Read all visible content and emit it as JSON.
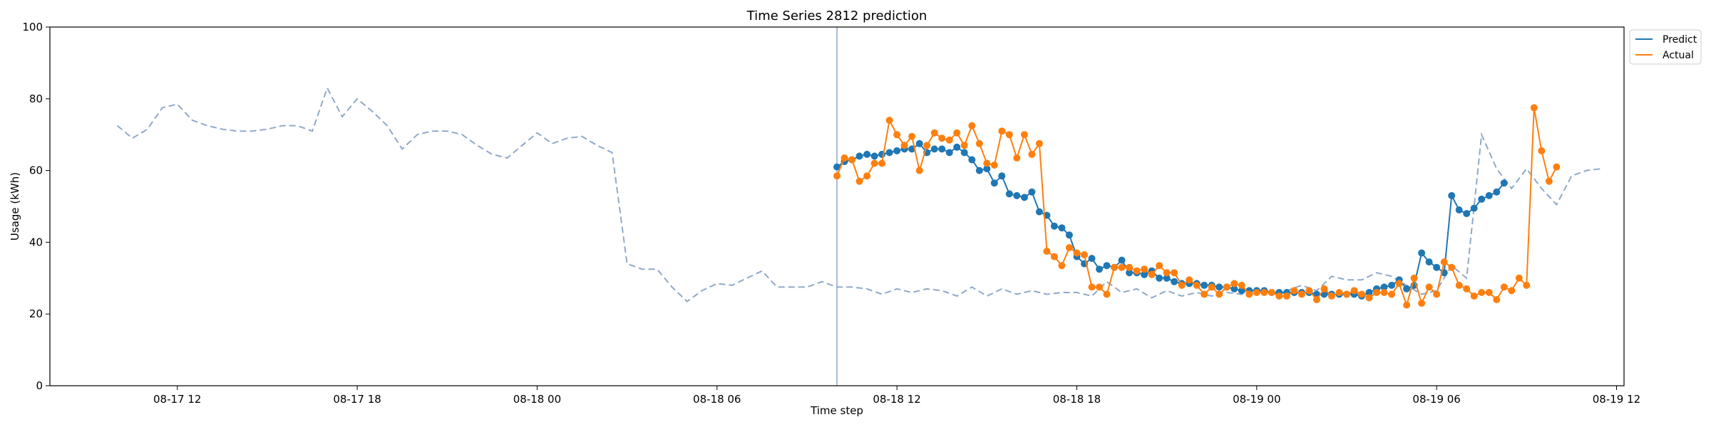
{
  "chart_data": {
    "type": "line",
    "title": "Time Series 2812 prediction",
    "xlabel": "Time step",
    "ylabel": "Usage (kWh)",
    "ylim": [
      0,
      100
    ],
    "yticks": [
      0,
      20,
      40,
      60,
      80,
      100
    ],
    "xlim": [
      "2025-08-17 07:45",
      "2025-08-19 12:15"
    ],
    "xticks": [
      {
        "t": "2025-08-17 12:00",
        "label": "08-17 12"
      },
      {
        "t": "2025-08-17 18:00",
        "label": "08-17 18"
      },
      {
        "t": "2025-08-18 00:00",
        "label": "08-18 00"
      },
      {
        "t": "2025-08-18 06:00",
        "label": "08-18 06"
      },
      {
        "t": "2025-08-18 12:00",
        "label": "08-18 12"
      },
      {
        "t": "2025-08-18 18:00",
        "label": "08-18 18"
      },
      {
        "t": "2025-08-19 00:00",
        "label": "08-19 00"
      },
      {
        "t": "2025-08-19 06:00",
        "label": "08-19 06"
      },
      {
        "t": "2025-08-19 12:00",
        "label": "08-19 12"
      }
    ],
    "prediction_start": "2025-08-18 10:00",
    "legend_position": "top-right",
    "colors": {
      "predict": "#1f77b4",
      "actual": "#ff7f0e",
      "history": "#8fa9c8",
      "divider": "#8fa9c8"
    },
    "legend": [
      {
        "key": "predict",
        "label": "Predict"
      },
      {
        "key": "actual",
        "label": "Actual"
      }
    ],
    "history": {
      "start": "2025-08-17 10:00",
      "step_minutes": 30,
      "values": [
        72.5,
        69,
        71.5,
        77.5,
        78.5,
        74,
        72.5,
        71.5,
        71,
        71,
        71.5,
        72.5,
        72.5,
        71,
        83,
        75,
        80,
        76.5,
        72.5,
        66,
        70,
        71,
        71,
        70,
        67,
        64.5,
        63.5,
        67,
        70.5,
        67.5,
        69,
        69.5,
        67,
        65,
        34,
        32.5,
        32.5,
        27.5,
        23.5,
        26.5,
        28.5,
        28,
        30,
        32,
        27.5,
        27.5,
        27.5,
        29,
        27.5,
        27.5,
        27,
        25.5,
        27,
        26,
        27,
        26.5,
        25,
        27.5,
        25,
        27,
        25.5,
        26.5,
        25.5,
        26,
        26,
        25,
        29,
        26,
        27,
        24.5,
        26.5,
        25,
        26,
        25,
        26,
        25.5,
        26.5,
        26,
        26.5,
        28,
        26.5,
        30.5,
        29.5,
        29.5,
        31.5,
        30.5,
        28,
        25.5,
        26.5,
        33.5,
        30,
        70,
        60.5,
        55,
        60.5,
        55,
        50.5,
        58.5,
        60,
        60.5
      ]
    },
    "series": [
      {
        "key": "predict",
        "name": "Predict",
        "start": "2025-08-18 10:00",
        "step_minutes": 15,
        "values": [
          61,
          62.5,
          63,
          64,
          64.5,
          64,
          64.5,
          65,
          65.5,
          66,
          66,
          67.5,
          65,
          66,
          66,
          65,
          66.5,
          65,
          63,
          60,
          60.5,
          56.5,
          58.5,
          53.5,
          53,
          52.5,
          54,
          48.5,
          47.5,
          44.5,
          44,
          42,
          36,
          34,
          35.5,
          32.5,
          33.5,
          33,
          35,
          31.5,
          31.5,
          31,
          32,
          30,
          30,
          29,
          28.5,
          28.5,
          28.5,
          28,
          28,
          27.5,
          27.5,
          27,
          26.5,
          26.5,
          26.5,
          26.5,
          26,
          26,
          26,
          26,
          26,
          26,
          25.5,
          25.5,
          25.5,
          25.5,
          25.5,
          25.5,
          25,
          26,
          27,
          27.5,
          28,
          29.5,
          27,
          28,
          37,
          34.5,
          33,
          31.5,
          53,
          49,
          48,
          49.5,
          52,
          53,
          54,
          56.5
        ]
      },
      {
        "key": "actual",
        "name": "Actual",
        "start": "2025-08-18 10:00",
        "step_minutes": 15,
        "values": [
          58.5,
          63.5,
          63,
          57,
          58.5,
          62,
          62,
          74,
          70,
          67,
          69.5,
          60,
          67,
          70.5,
          69,
          68.5,
          70.5,
          67,
          72.5,
          67.5,
          62,
          61.5,
          71,
          70,
          63.5,
          70,
          64.5,
          67.5,
          37.5,
          36,
          33.5,
          38.5,
          37,
          36.5,
          27.5,
          27.5,
          25.5,
          33,
          33,
          33,
          32,
          32.5,
          31,
          33.5,
          31.5,
          31.5,
          28,
          29.5,
          28,
          25.5,
          27.5,
          25.5,
          27.5,
          28.5,
          28,
          25.5,
          26,
          26,
          26,
          25,
          25,
          26.5,
          25.5,
          26.5,
          24,
          27,
          25,
          26,
          25.5,
          26.5,
          25.5,
          24.5,
          26,
          26,
          25.5,
          28.5,
          22.5,
          30,
          23,
          27.5,
          25.5,
          34.5,
          33,
          28,
          27,
          25,
          26,
          26,
          24,
          27.5,
          26.5,
          30,
          28,
          77.5,
          65.5,
          57,
          61
        ]
      }
    ]
  }
}
